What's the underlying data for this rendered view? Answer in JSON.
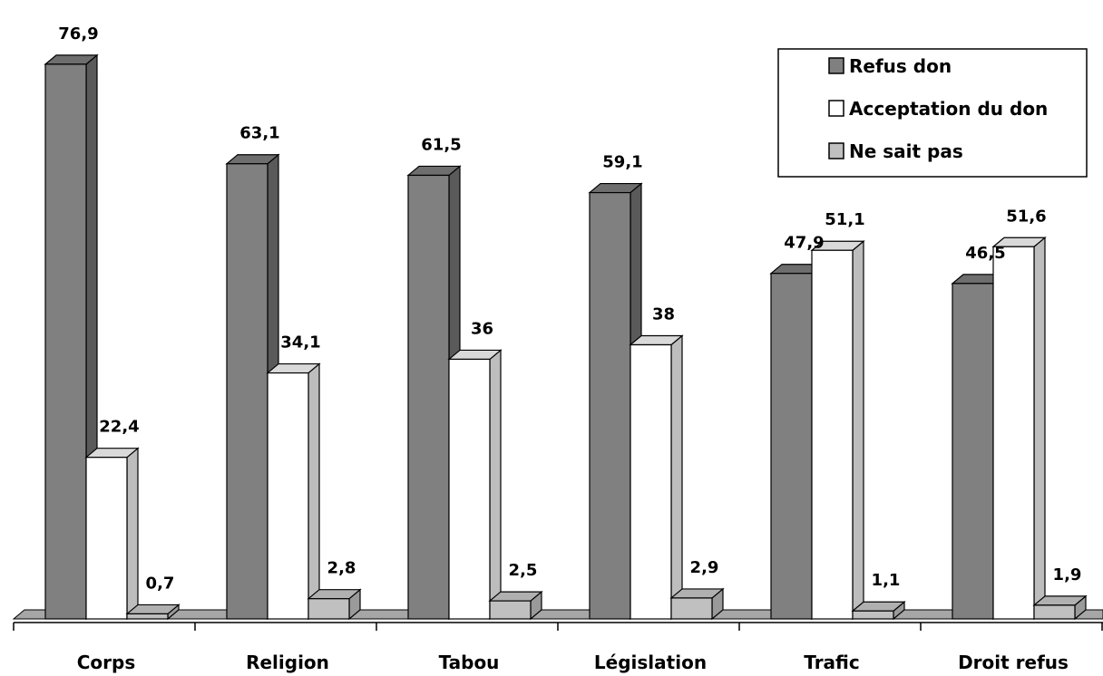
{
  "chart_data": {
    "type": "bar",
    "categories": [
      "Corps",
      "Religion",
      "Tabou",
      "Législation",
      "Trafic",
      "Droit refus"
    ],
    "series": [
      {
        "name": "Refus don",
        "values": [
          "76,9",
          "63,1",
          "61,5",
          "59,1",
          "47,9",
          "46,5"
        ],
        "numeric": [
          76.9,
          63.1,
          61.5,
          59.1,
          47.9,
          46.5
        ],
        "color": "#808080",
        "side": "#5a5a5a",
        "top": "#6e6e6e"
      },
      {
        "name": "Acceptation du don",
        "values": [
          "22,4",
          "34,1",
          "36",
          "38",
          "51,1",
          "51,6"
        ],
        "numeric": [
          22.4,
          34.1,
          36,
          38,
          51.1,
          51.6
        ],
        "color": "#ffffff",
        "side": "#bdbdbd",
        "top": "#d9d9d9"
      },
      {
        "name": "Ne sait pas",
        "values": [
          "0,7",
          "2,8",
          "2,5",
          "2,9",
          "1,1",
          "1,9"
        ],
        "numeric": [
          0.7,
          2.8,
          2.5,
          2.9,
          1.1,
          1.9
        ],
        "color": "#c0c0c0",
        "side": "#9a9a9a",
        "top": "#b0b0b0"
      }
    ],
    "legend": {
      "placement": "top-right",
      "labels": [
        "Refus don",
        "Acceptation du don",
        "Ne sait pas"
      ]
    },
    "ylim": [
      0,
      80
    ],
    "grid": false,
    "style": "3d-clustered-column"
  }
}
